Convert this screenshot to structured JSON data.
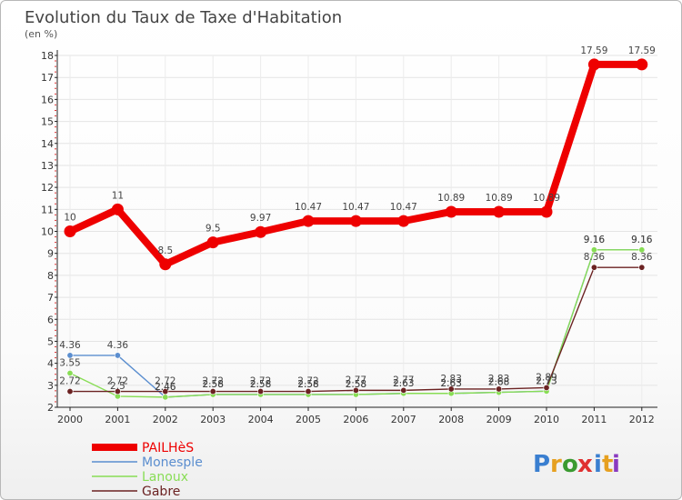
{
  "colors": {
    "PAILHèS": "#ee0000",
    "Monesple": "#5b8ecf",
    "Lanoux": "#88dd55",
    "Gabre": "#6b2222",
    "logo_p": "#3a7fd0",
    "logo_r": "#e6a020",
    "logo_o": "#3a9a30",
    "logo_x": "#e03030",
    "logo_i": "#3a7fd0",
    "logo_t": "#e6a020",
    "logo_i2": "#8a3ac0"
  },
  "logo": {
    "text": "Proxiti",
    "letters": [
      "P",
      "r",
      "o",
      "x",
      "i",
      "t",
      "i"
    ]
  },
  "chart_data": {
    "type": "line",
    "title": "Evolution du Taux de Taxe d'Habitation",
    "subtitle": "(en %)",
    "xlabel": "",
    "ylabel": "",
    "categories": [
      "2000",
      "2001",
      "2002",
      "2003",
      "2004",
      "2005",
      "2006",
      "2007",
      "2008",
      "2009",
      "2010",
      "2011",
      "2012"
    ],
    "ylim": [
      2,
      18
    ],
    "yticks": [
      2,
      3,
      4,
      5,
      6,
      7,
      8,
      9,
      10,
      11,
      12,
      13,
      14,
      15,
      16,
      17,
      18
    ],
    "legend_position": "bottom-left",
    "series": [
      {
        "name": "PAILHèS",
        "values": [
          10,
          11,
          8.5,
          9.5,
          9.97,
          10.47,
          10.47,
          10.47,
          10.89,
          10.89,
          10.89,
          17.59,
          17.59
        ],
        "labels": [
          "10",
          "11",
          "8.5",
          "9.5",
          "9.97",
          "10.47",
          "10.47",
          "10.47",
          "10.89",
          "10.89",
          "10.89",
          "17.59",
          "17.59"
        ]
      },
      {
        "name": "Monesple",
        "values": [
          4.36,
          4.36,
          2.46,
          2.58,
          2.58,
          2.58,
          2.58,
          2.63,
          2.63,
          2.68,
          2.73,
          9.16,
          9.16
        ],
        "labels": [
          "4.36",
          "4.36",
          "2.46",
          "2.58",
          "2.58",
          "2.58",
          "2.58",
          "2.63",
          "2.63",
          "2.68",
          "2.73",
          "9.16",
          "9.16"
        ]
      },
      {
        "name": "Lanoux",
        "values": [
          3.55,
          2.5,
          2.46,
          2.58,
          2.58,
          2.58,
          2.58,
          2.63,
          2.63,
          2.68,
          2.73,
          9.16,
          9.16
        ],
        "labels": [
          "3.55",
          "2.5",
          "2.46",
          "2.58",
          "2.58",
          "2.58",
          "2.58",
          "2.63",
          "2.63",
          "2.68",
          "2.73",
          "9.16",
          "9.16"
        ]
      },
      {
        "name": "Gabre",
        "values": [
          2.72,
          2.72,
          2.72,
          2.72,
          2.72,
          2.72,
          2.77,
          2.77,
          2.83,
          2.83,
          2.89,
          8.36,
          8.36
        ],
        "labels": [
          "2.72",
          "2.72",
          "2.72",
          "2.72",
          "2.72",
          "2.72",
          "2.77",
          "2.77",
          "2.83",
          "2.83",
          "2.89",
          "8.36",
          "8.36"
        ]
      }
    ]
  }
}
